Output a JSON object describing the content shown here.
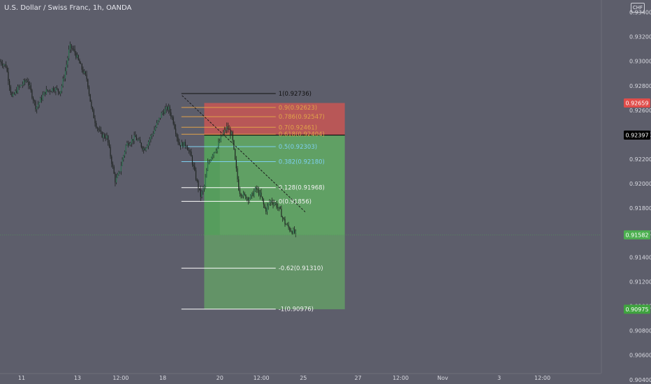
{
  "header": {
    "symbol_label": "U.S. Dollar / Swiss Franc, 1h, OANDA",
    "currency_badge": "CHF"
  },
  "colors": {
    "background": "#5d5e6b",
    "axis_text": "#d8d9e0",
    "candles": "#1f2421",
    "stop_zone": "#c85654",
    "target_zone": "#62b463",
    "current_price_tag": "#4caf50",
    "stop_tag": "#e04d4a",
    "target_tag": "#3fa33f",
    "entry_tag": "#000000",
    "fib_line": "#ffffff",
    "fib_top_line": "#111111"
  },
  "chart_data": {
    "type": "candlestick",
    "title": "",
    "y_axis": {
      "range": [
        0.9045,
        0.935
      ],
      "ticks": [
        "0.93400",
        "0.93200",
        "0.93000",
        "0.92800",
        "0.92600",
        "0.92400",
        "0.92200",
        "0.92000",
        "0.91800",
        "0.91600",
        "0.91400",
        "0.91200",
        "0.91000",
        "0.90800",
        "0.90600",
        "0.90400"
      ]
    },
    "x_axis": {
      "ticks": [
        {
          "label": "11",
          "t": 0.036
        },
        {
          "label": "13",
          "t": 0.129
        },
        {
          "label": "12:00",
          "t": 0.201
        },
        {
          "label": "18",
          "t": 0.271
        },
        {
          "label": "20",
          "t": 0.366
        },
        {
          "label": "12:00",
          "t": 0.435
        },
        {
          "label": "25",
          "t": 0.505
        },
        {
          "label": "27",
          "t": 0.596
        },
        {
          "label": "12:00",
          "t": 0.667
        },
        {
          "label": "Nov",
          "t": 0.737
        },
        {
          "label": "3",
          "t": 0.831
        },
        {
          "label": "12:00",
          "t": 0.903
        }
      ]
    },
    "price_path": [
      [
        0.0,
        0.93
      ],
      [
        0.01,
        0.9296
      ],
      [
        0.02,
        0.927
      ],
      [
        0.03,
        0.9278
      ],
      [
        0.045,
        0.9285
      ],
      [
        0.06,
        0.9262
      ],
      [
        0.075,
        0.9275
      ],
      [
        0.09,
        0.9278
      ],
      [
        0.1,
        0.9275
      ],
      [
        0.108,
        0.929
      ],
      [
        0.116,
        0.9312
      ],
      [
        0.124,
        0.9308
      ],
      [
        0.135,
        0.9295
      ],
      [
        0.145,
        0.9285
      ],
      [
        0.152,
        0.9262
      ],
      [
        0.16,
        0.9248
      ],
      [
        0.168,
        0.924
      ],
      [
        0.178,
        0.9238
      ],
      [
        0.185,
        0.922
      ],
      [
        0.192,
        0.9202
      ],
      [
        0.198,
        0.9208
      ],
      [
        0.21,
        0.9232
      ],
      [
        0.225,
        0.9238
      ],
      [
        0.24,
        0.9228
      ],
      [
        0.255,
        0.9242
      ],
      [
        0.27,
        0.9258
      ],
      [
        0.28,
        0.9262
      ],
      [
        0.288,
        0.9252
      ],
      [
        0.298,
        0.9232
      ],
      [
        0.31,
        0.9232
      ],
      [
        0.318,
        0.9222
      ],
      [
        0.326,
        0.9205
      ],
      [
        0.334,
        0.919
      ],
      [
        0.34,
        0.9198
      ],
      [
        0.346,
        0.9216
      ],
      [
        0.354,
        0.9225
      ],
      [
        0.362,
        0.923
      ],
      [
        0.37,
        0.924
      ],
      [
        0.378,
        0.9246
      ],
      [
        0.386,
        0.924
      ],
      [
        0.392,
        0.9216
      ],
      [
        0.398,
        0.9194
      ],
      [
        0.406,
        0.919
      ],
      [
        0.416,
        0.9188
      ],
      [
        0.426,
        0.9196
      ],
      [
        0.434,
        0.919
      ],
      [
        0.442,
        0.9178
      ],
      [
        0.45,
        0.9186
      ],
      [
        0.458,
        0.9184
      ],
      [
        0.466,
        0.9178
      ],
      [
        0.474,
        0.9168
      ],
      [
        0.482,
        0.9163
      ],
      [
        0.49,
        0.916
      ],
      [
        0.494,
        0.9158
      ]
    ],
    "position": {
      "entry": 0.92397,
      "stop": 0.92659,
      "current": 0.91582,
      "target": 0.90975,
      "x_start": 0.34,
      "x_end": 0.574,
      "lower_box_x_start": 0.366
    },
    "price_tags": [
      {
        "label": "0.92659",
        "value": 0.92659,
        "kind": "stop"
      },
      {
        "label": "0.92397",
        "value": 0.92397,
        "kind": "entry"
      },
      {
        "label": "0.91582",
        "value": 0.91582,
        "kind": "current"
      },
      {
        "label": "0.90975",
        "value": 0.90975,
        "kind": "target"
      }
    ],
    "fibonacci": {
      "x_start": 0.302,
      "x_end": 0.459,
      "levels": [
        {
          "label": "1(0.92736)",
          "value": 0.92736,
          "color": "#111111"
        },
        {
          "label": "0.9(0.92623)",
          "value": 0.92623,
          "color": "#e0a24a"
        },
        {
          "label": "0.786(0.92547)",
          "value": 0.92547,
          "color": "#e0a24a"
        },
        {
          "label": "0.7(0.92461)",
          "value": 0.92461,
          "color": "#e0a24a"
        },
        {
          "label": "0.618(0.92404)",
          "value": 0.92404,
          "color": "#e0a24a"
        },
        {
          "label": "0.5(0.92303)",
          "value": 0.92303,
          "color": "#7ed0f0"
        },
        {
          "label": "0.382(0.92180)",
          "value": 0.9218,
          "color": "#7ed0f0"
        },
        {
          "label": "0.128(0.91968)",
          "value": 0.91968,
          "color": "#ffffff"
        },
        {
          "label": "0(0.91856)",
          "value": 0.91856,
          "color": "#ffffff"
        },
        {
          "label": "-0.62(0.91310)",
          "value": 0.9131,
          "color": "#ffffff"
        },
        {
          "label": "-1(0.90976)",
          "value": 0.90976,
          "color": "#ffffff"
        }
      ]
    },
    "trend_line": [
      [
        0.303,
        0.9272
      ],
      [
        0.508,
        0.9177
      ]
    ]
  }
}
